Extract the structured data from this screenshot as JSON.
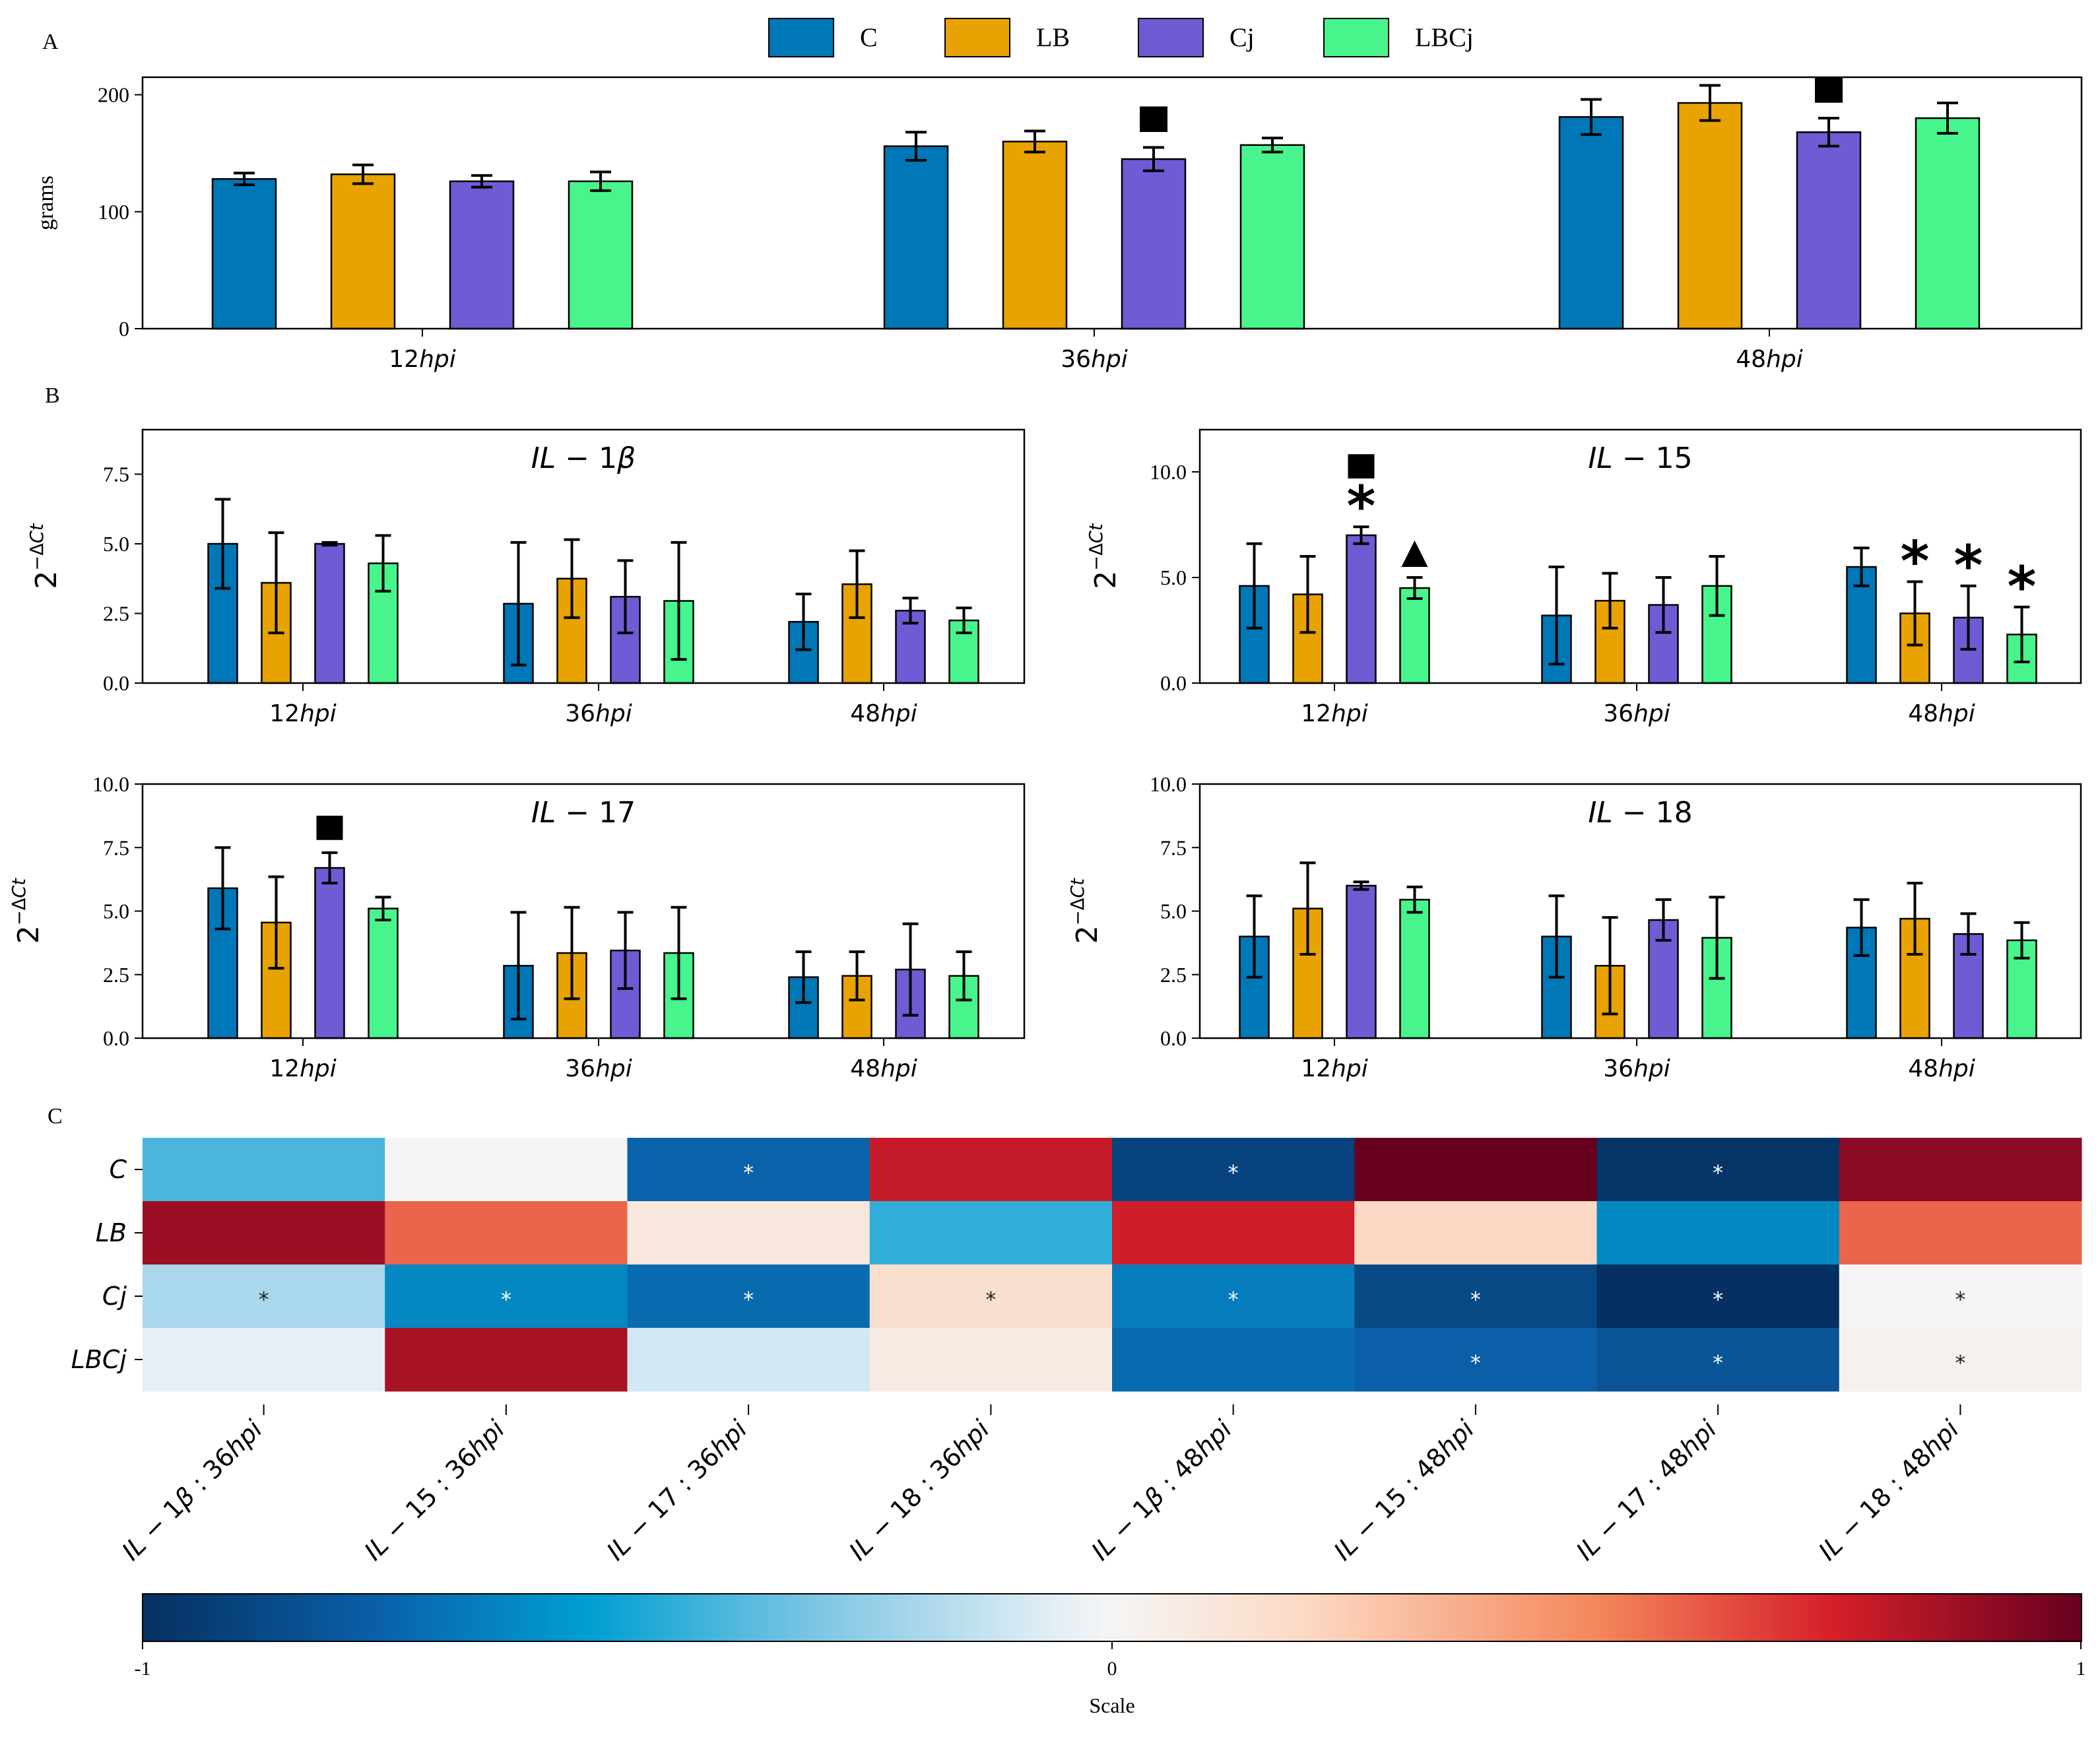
{
  "legend": {
    "groups": [
      "C",
      "LB",
      "Cj",
      "LBCj"
    ],
    "colors": [
      "#0077b6",
      "#e8a202",
      "#6f5bd3",
      "#47f58c"
    ]
  },
  "panel_labels": {
    "a": "A",
    "b": "B",
    "c": "C"
  },
  "marker_legend_note": "",
  "chart_data": [
    {
      "id": "A",
      "type": "bar",
      "categories": [
        "12hpi",
        "36hpi",
        "48hpi"
      ],
      "ylabel": "grams",
      "ylim": [
        0,
        215
      ],
      "yticks": [
        0,
        100,
        200
      ],
      "series": [
        {
          "name": "C",
          "values": [
            128,
            156,
            181
          ],
          "errors": [
            5,
            12,
            15
          ]
        },
        {
          "name": "LB",
          "values": [
            132,
            160,
            193
          ],
          "errors": [
            8,
            9,
            15
          ]
        },
        {
          "name": "Cj",
          "values": [
            126,
            145,
            168
          ],
          "errors": [
            5,
            10,
            12
          ]
        },
        {
          "name": "LBCj",
          "values": [
            126,
            157,
            180
          ],
          "errors": [
            8,
            6,
            13
          ]
        }
      ],
      "markers": [
        {
          "category": 1,
          "series": 2,
          "symbols": [
            "square"
          ]
        },
        {
          "category": 2,
          "series": 2,
          "symbols": [
            "square"
          ]
        }
      ]
    },
    {
      "id": "IL-1b",
      "type": "bar",
      "title": "IL-1β",
      "ylabel": "2^-ΔCt",
      "categories": [
        "12hpi",
        "36hpi",
        "48hpi"
      ],
      "ylim": [
        0,
        9.1
      ],
      "yticks": [
        0.0,
        2.5,
        5.0,
        7.5
      ],
      "series": [
        {
          "name": "C",
          "values": [
            5.0,
            2.85,
            2.2
          ],
          "errors": [
            1.6,
            2.2,
            1.0
          ]
        },
        {
          "name": "LB",
          "values": [
            3.6,
            3.75,
            3.55
          ],
          "errors": [
            1.8,
            1.4,
            1.2
          ]
        },
        {
          "name": "Cj",
          "values": [
            5.0,
            3.1,
            2.6
          ],
          "errors": [
            0.05,
            1.3,
            0.45
          ]
        },
        {
          "name": "LBCj",
          "values": [
            4.3,
            2.95,
            2.25
          ],
          "errors": [
            1.0,
            2.1,
            0.45
          ]
        }
      ],
      "markers": []
    },
    {
      "id": "IL-15",
      "type": "bar",
      "title": "IL-15",
      "ylabel": "2^-ΔCt",
      "categories": [
        "12hpi",
        "36hpi",
        "48hpi"
      ],
      "ylim": [
        0,
        12
      ],
      "yticks": [
        0,
        5,
        10
      ],
      "series": [
        {
          "name": "C",
          "values": [
            4.6,
            3.2,
            5.5
          ],
          "errors": [
            2.0,
            2.3,
            0.9
          ]
        },
        {
          "name": "LB",
          "values": [
            4.2,
            3.9,
            3.3
          ],
          "errors": [
            1.8,
            1.3,
            1.5
          ]
        },
        {
          "name": "Cj",
          "values": [
            7.0,
            3.7,
            3.1
          ],
          "errors": [
            0.4,
            1.3,
            1.5
          ]
        },
        {
          "name": "LBCj",
          "values": [
            4.5,
            4.6,
            2.3
          ],
          "errors": [
            0.5,
            1.4,
            1.3
          ]
        }
      ],
      "markers": [
        {
          "category": 0,
          "series": 2,
          "symbols": [
            "star",
            "square"
          ]
        },
        {
          "category": 0,
          "series": 3,
          "symbols": [
            "triangle"
          ]
        },
        {
          "category": 2,
          "series": 1,
          "symbols": [
            "star"
          ]
        },
        {
          "category": 2,
          "series": 2,
          "symbols": [
            "star"
          ]
        },
        {
          "category": 2,
          "series": 3,
          "symbols": [
            "star"
          ]
        }
      ]
    },
    {
      "id": "IL-17",
      "type": "bar",
      "title": "IL-17",
      "ylabel": "2^-ΔCt",
      "categories": [
        "12hpi",
        "36hpi",
        "48hpi"
      ],
      "ylim": [
        0,
        10
      ],
      "yticks": [
        0.0,
        2.5,
        5.0,
        7.5,
        10.0
      ],
      "series": [
        {
          "name": "C",
          "values": [
            5.9,
            2.85,
            2.4
          ],
          "errors": [
            1.6,
            2.1,
            1.0
          ]
        },
        {
          "name": "LB",
          "values": [
            4.55,
            3.35,
            2.45
          ],
          "errors": [
            1.8,
            1.8,
            0.95
          ]
        },
        {
          "name": "Cj",
          "values": [
            6.7,
            3.45,
            2.7
          ],
          "errors": [
            0.6,
            1.5,
            1.8
          ]
        },
        {
          "name": "LBCj",
          "values": [
            5.1,
            3.35,
            2.45
          ],
          "errors": [
            0.45,
            1.8,
            0.95
          ]
        }
      ],
      "markers": [
        {
          "category": 0,
          "series": 2,
          "symbols": [
            "square"
          ]
        }
      ]
    },
    {
      "id": "IL-18",
      "type": "bar",
      "title": "IL-18",
      "ylabel": "2^-ΔCt",
      "categories": [
        "12hpi",
        "36hpi",
        "48hpi"
      ],
      "ylim": [
        0,
        10
      ],
      "yticks": [
        0.0,
        2.5,
        5.0,
        7.5,
        10.0
      ],
      "series": [
        {
          "name": "C",
          "values": [
            4.0,
            4.0,
            4.35
          ],
          "errors": [
            1.6,
            1.6,
            1.1
          ]
        },
        {
          "name": "LB",
          "values": [
            5.1,
            2.85,
            4.7
          ],
          "errors": [
            1.8,
            1.9,
            1.4
          ]
        },
        {
          "name": "Cj",
          "values": [
            6.0,
            4.65,
            4.1
          ],
          "errors": [
            0.15,
            0.8,
            0.8
          ]
        },
        {
          "name": "LBCj",
          "values": [
            5.45,
            3.95,
            3.85
          ],
          "errors": [
            0.5,
            1.6,
            0.7
          ]
        }
      ],
      "markers": []
    },
    {
      "id": "C",
      "type": "heatmap",
      "rows": [
        "C",
        "LB",
        "Cj",
        "LBCj"
      ],
      "columns": [
        "IL-1β: 36hpi",
        "IL-15: 36hpi",
        "IL-17: 36hpi",
        "IL-18: 36hpi",
        "IL-1β: 48hpi",
        "IL-15: 48hpi",
        "IL-17: 48hpi",
        "IL-18: 48hpi"
      ],
      "values": [
        [
          -0.4,
          0.0,
          -0.75,
          0.78,
          -0.9,
          1.0,
          -0.98,
          0.92
        ],
        [
          0.88,
          0.58,
          0.1,
          -0.45,
          0.76,
          0.2,
          -0.62,
          0.58
        ],
        [
          -0.2,
          -0.62,
          -0.72,
          0.16,
          -0.66,
          -0.88,
          -1.0,
          0.0
        ],
        [
          -0.05,
          0.85,
          -0.1,
          0.07,
          -0.72,
          -0.76,
          -0.82,
          0.03
        ]
      ],
      "significance": [
        [
          false,
          false,
          true,
          false,
          true,
          false,
          true,
          false
        ],
        [
          false,
          false,
          false,
          false,
          false,
          false,
          false,
          false
        ],
        [
          true,
          true,
          true,
          true,
          true,
          true,
          true,
          true
        ],
        [
          false,
          false,
          false,
          false,
          false,
          true,
          true,
          true
        ]
      ],
      "significance_symbol": "*",
      "scale": {
        "label": "Scale",
        "min": -1,
        "max": 1,
        "ticks": [
          "-1",
          "0",
          "1"
        ]
      }
    }
  ]
}
